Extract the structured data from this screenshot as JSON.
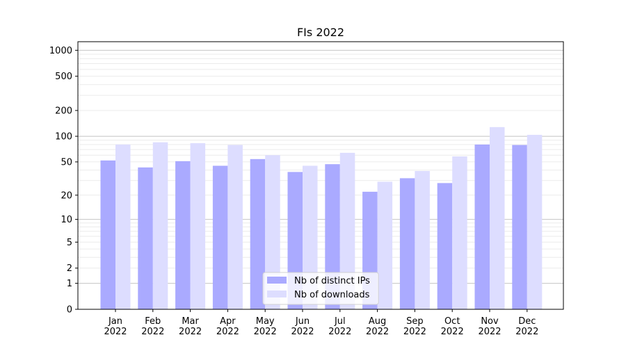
{
  "chart_data": {
    "type": "bar",
    "title": "FIs 2022",
    "xlabel": "",
    "ylabel": "",
    "yscale": "log10(y+1)",
    "ylim": [
      0,
      1200
    ],
    "yticks": [
      0,
      1,
      2,
      5,
      10,
      20,
      50,
      100,
      200,
      500,
      1000
    ],
    "grid": true,
    "legend": "bottom-center",
    "categories": [
      "Jan\n2022",
      "Feb\n2022",
      "Mar\n2022",
      "Apr\n2022",
      "May\n2022",
      "Jun\n2022",
      "Jul\n2022",
      "Aug\n2022",
      "Sep\n2022",
      "Oct\n2022",
      "Nov\n2022",
      "Dec\n2022"
    ],
    "series": [
      {
        "name": "Nb of distinct IPs",
        "color": "#aaaaff",
        "values": [
          52,
          43,
          51,
          45,
          54,
          38,
          47,
          22,
          32,
          28,
          80,
          79
        ]
      },
      {
        "name": "Nb of downloads",
        "color": "#ddddff",
        "values": [
          80,
          85,
          83,
          79,
          60,
          45,
          64,
          29,
          39,
          58,
          128,
          104
        ]
      }
    ]
  }
}
